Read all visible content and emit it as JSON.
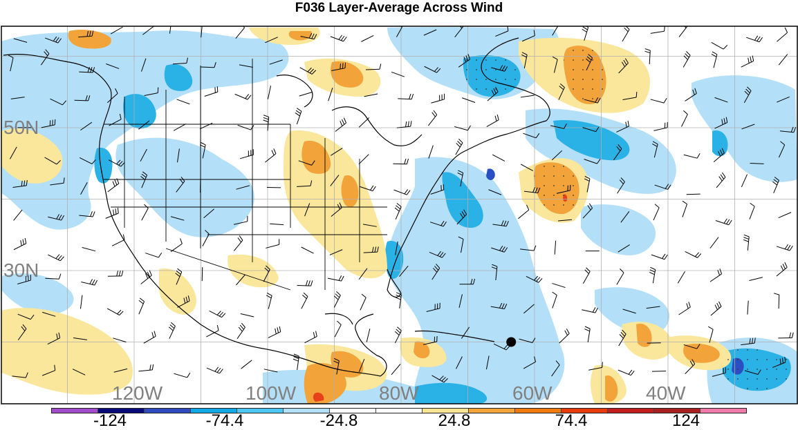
{
  "title": "F036 Layer-Average Across Wind",
  "lat_labels": [
    {
      "text": "50N",
      "lat": 50
    },
    {
      "text": "30N",
      "lat": 30
    }
  ],
  "lon_labels": [
    {
      "text": "120W",
      "lon": -120
    },
    {
      "text": "100W",
      "lon": -100
    },
    {
      "text": "80W",
      "lon": -80
    },
    {
      "text": "60W",
      "lon": -60
    },
    {
      "text": "40W",
      "lon": -40
    }
  ],
  "colorbar": {
    "colors": [
      "#a24ccc",
      "#0a0a7a",
      "#2f4bbf",
      "#13a9e6",
      "#4dc6f2",
      "#b3dff7",
      "#ffffff",
      "#ffffff",
      "#f9e493",
      "#f4a53a",
      "#f07a10",
      "#e83c0f",
      "#c41d1d",
      "#a82020",
      "#f07aa8"
    ],
    "labels": [
      "-124",
      "-74.4",
      "-24.8",
      "24.8",
      "74.4",
      "124"
    ]
  },
  "field_colors": {
    "light_blue": "#b3e0f8",
    "blue": "#2ab1e6",
    "dark_blue": "#2a4fc2",
    "light_yellow": "#fae79b",
    "orange": "#f2a33a",
    "red": "#e8401a"
  },
  "marker": {
    "name": "black-dot",
    "lat": 20,
    "lon": -63.5
  }
}
